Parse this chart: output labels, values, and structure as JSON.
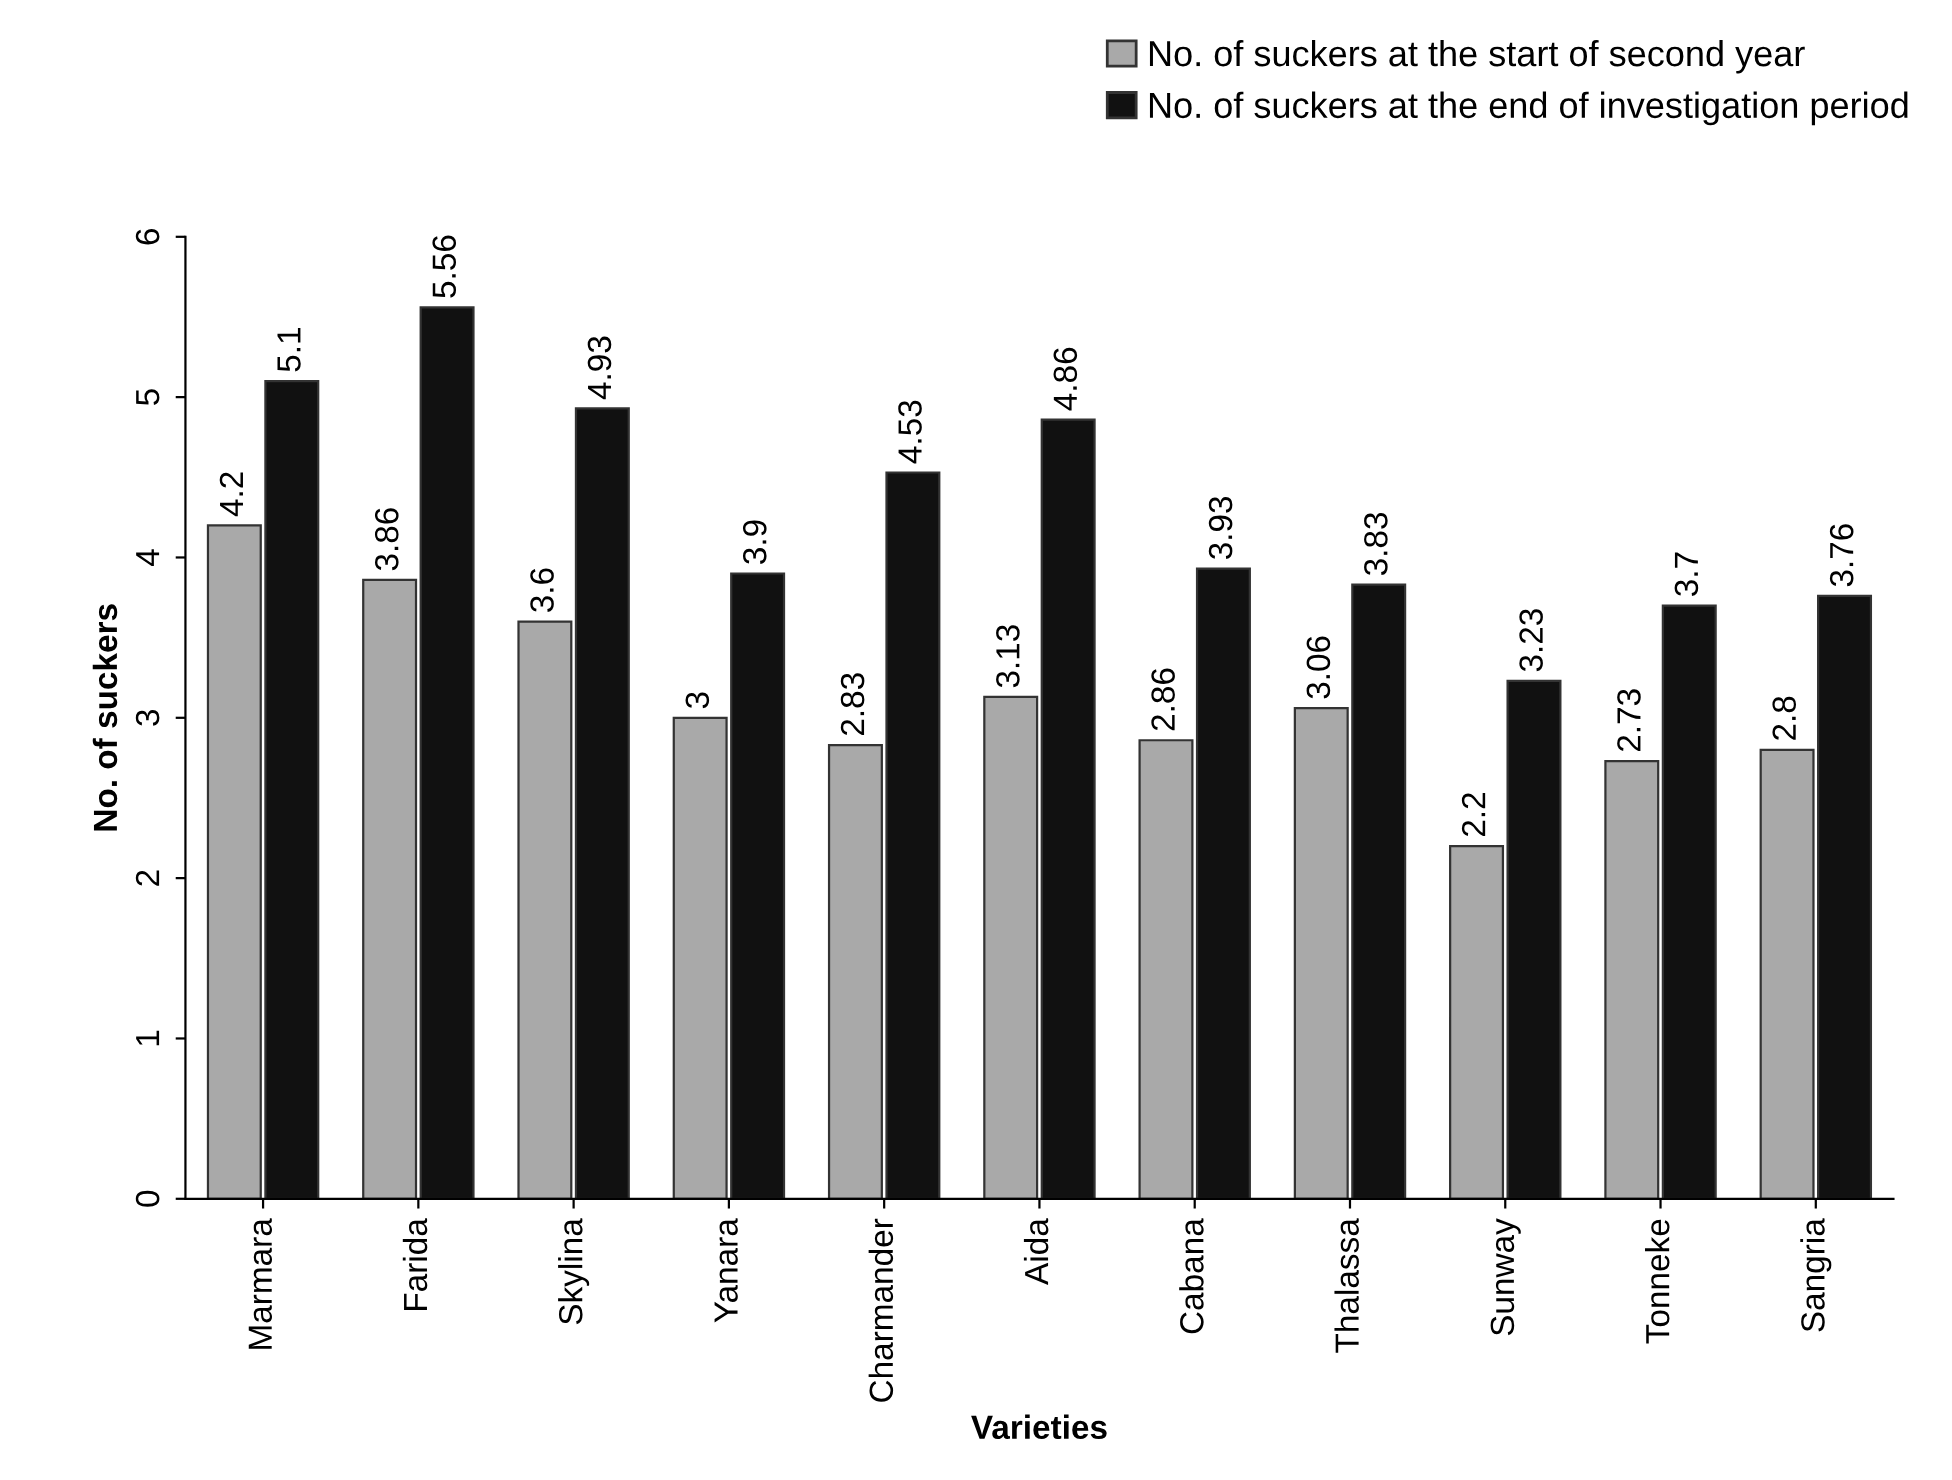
{
  "chart_data": {
    "type": "bar",
    "xlabel": "Varieties",
    "ylabel": "No. of suckers",
    "categories": [
      "Marmara",
      "Farida",
      "Skylina",
      "Yanara",
      "Charmander",
      "Aida",
      "Cabana",
      "Thalassa",
      "Sunway",
      "Tonneke",
      "Sangria"
    ],
    "series": [
      {
        "name": "No. of suckers at the start of second year",
        "color": "#a9a9a9",
        "values": [
          4.2,
          3.86,
          3.6,
          3,
          2.83,
          3.13,
          2.86,
          3.06,
          2.2,
          2.73,
          2.8
        ]
      },
      {
        "name": "No. of suckers at the end of investigation period",
        "color": "#111111",
        "values": [
          5.1,
          5.56,
          4.93,
          3.9,
          4.53,
          4.86,
          3.93,
          3.83,
          3.23,
          3.7,
          3.76
        ]
      }
    ],
    "ylim": [
      0,
      6
    ],
    "yticks": [
      0,
      1,
      2,
      3,
      4,
      5,
      6
    ],
    "grid": false,
    "legend": "top right",
    "data_labels": true
  }
}
